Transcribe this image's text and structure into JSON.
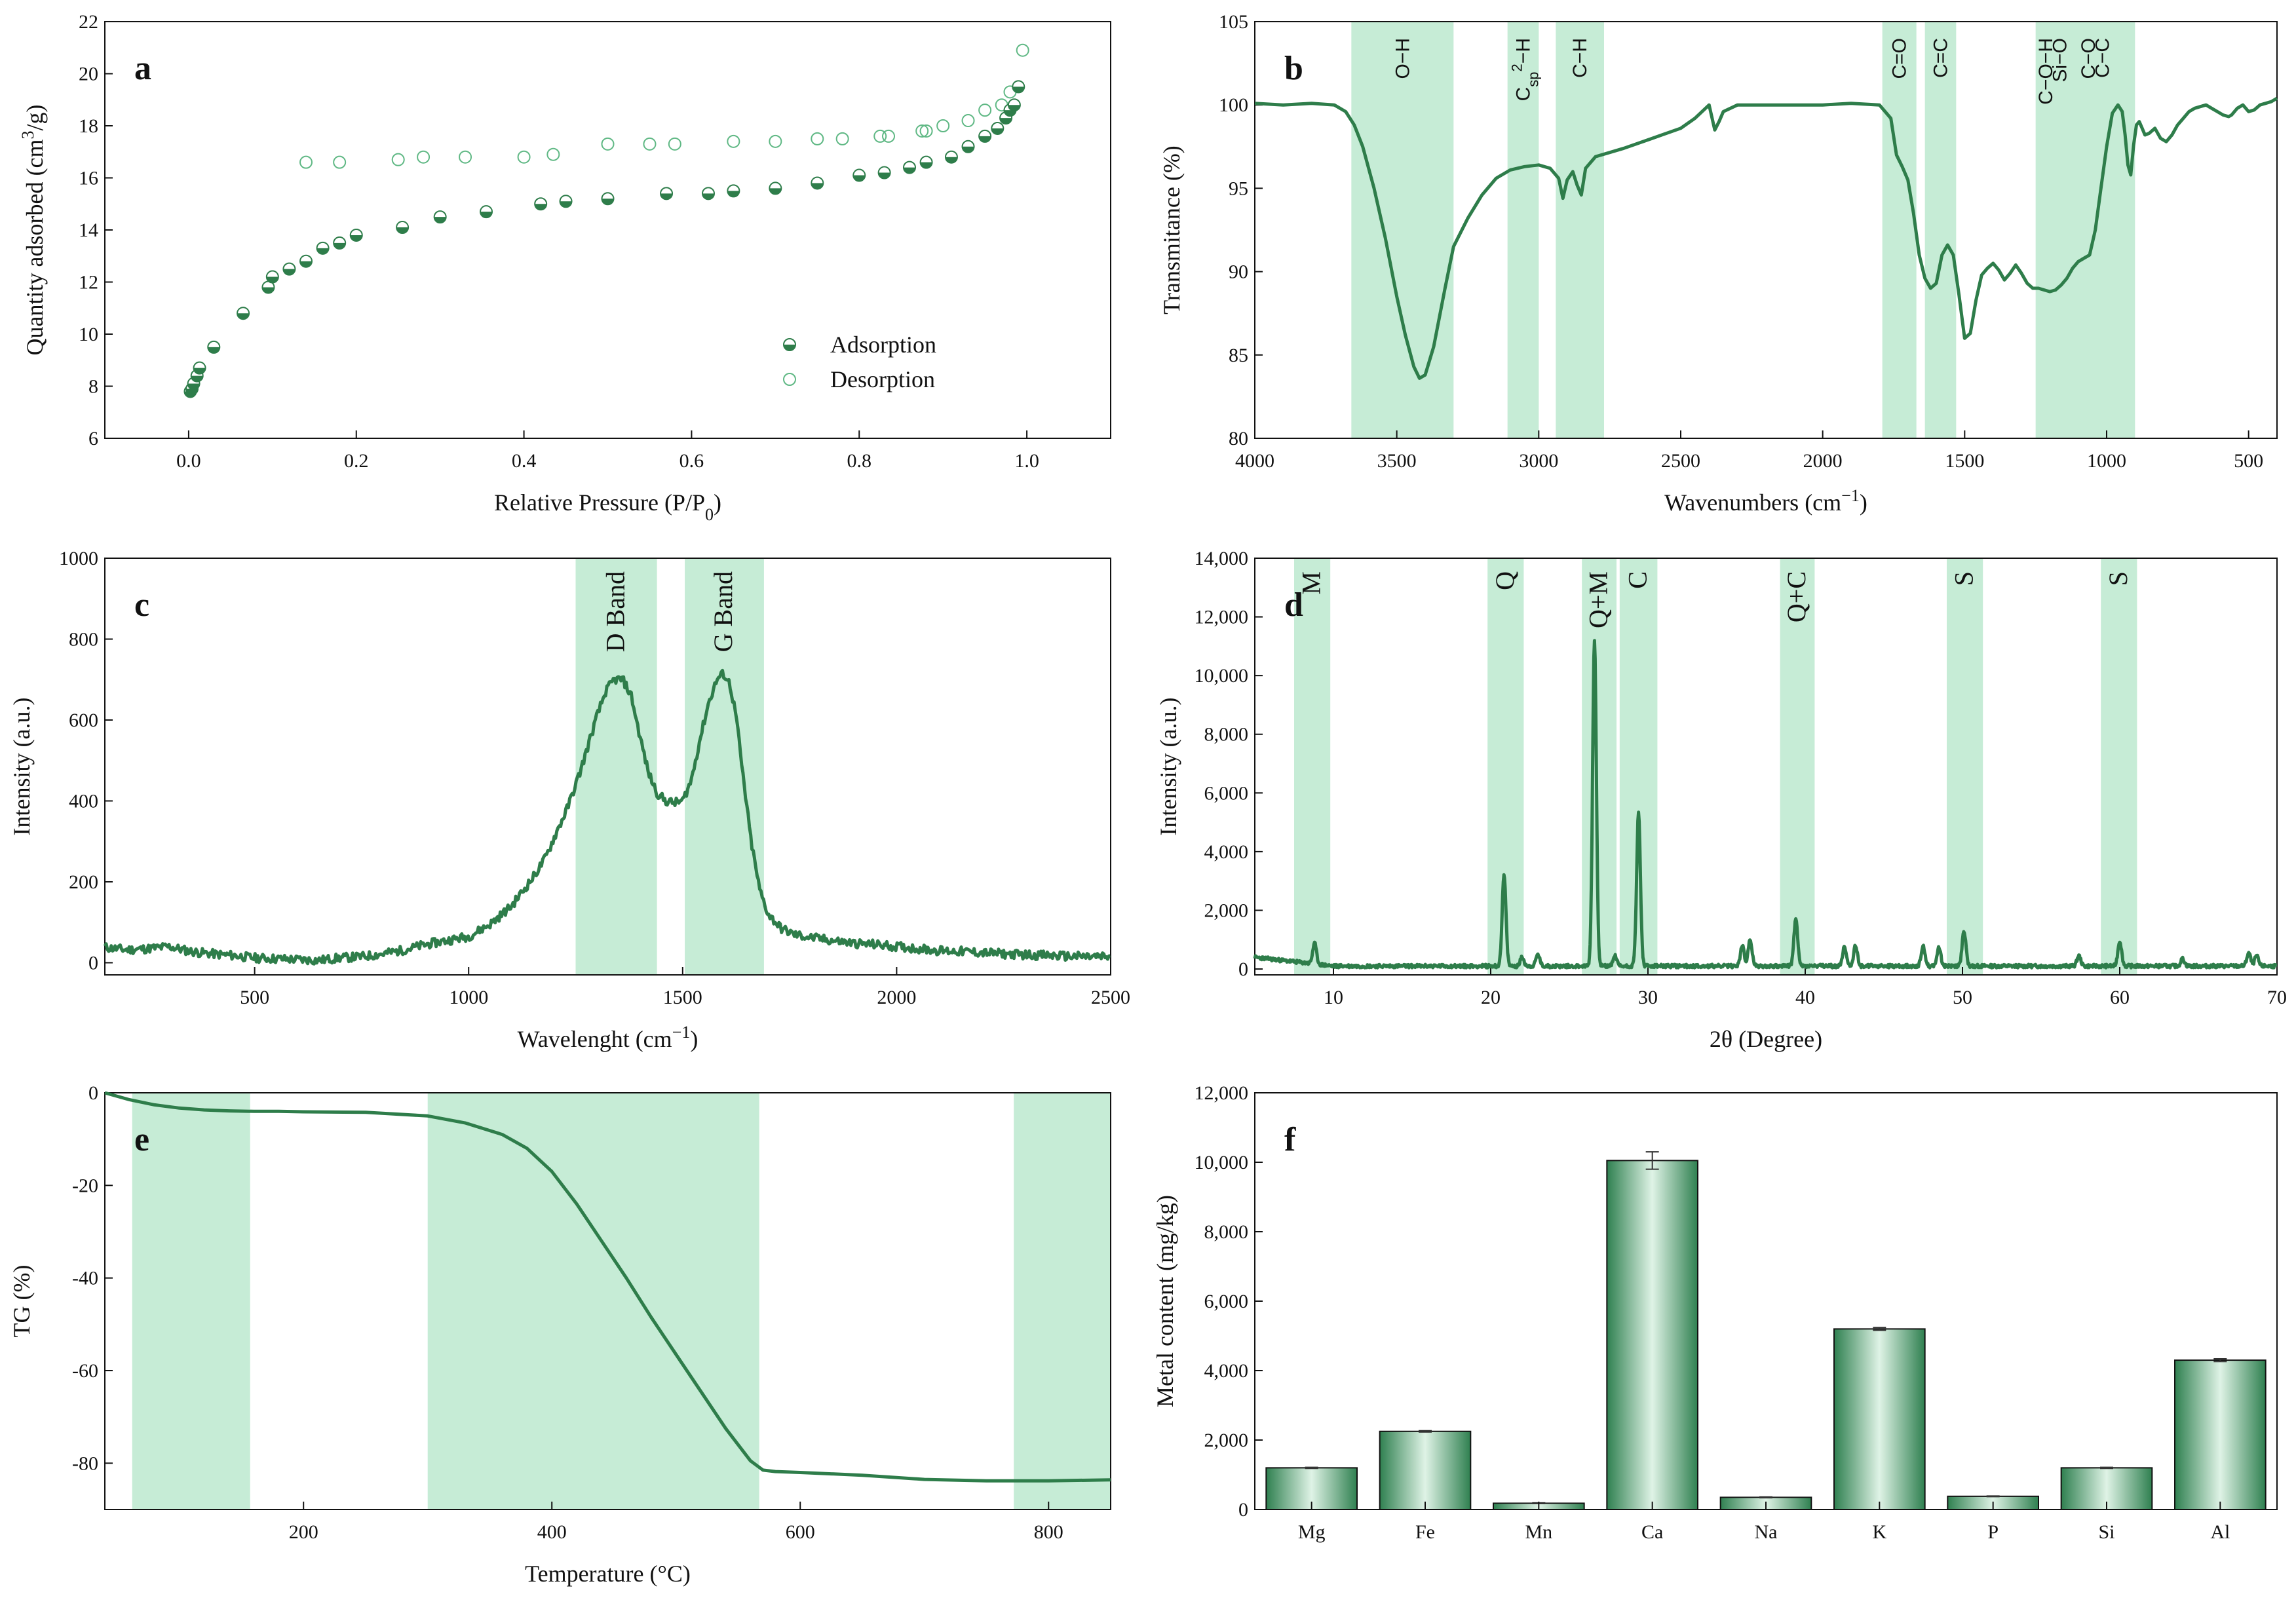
{
  "colors": {
    "line": "#2e7d4a",
    "band": "#c6ecd6",
    "marker_stroke": "#5fb884",
    "bar_dark": "#2f8050",
    "bar_light": "#dff3e6"
  },
  "chart_data": [
    {
      "id": "a",
      "type": "scatter",
      "letter": "a",
      "xlabel": "Relative Pressure (P/P",
      "xlabel_sub": "0",
      "xlabel_tail": ")",
      "ylabel": "Quantity adsorbed (cm",
      "ylabel_sup": "3",
      "ylabel_tail": "/g)",
      "xlim": [
        -0.1,
        1.1
      ],
      "ylim": [
        6,
        22
      ],
      "xticks": [
        "0.0",
        "0.2",
        "0.4",
        "0.6",
        "0.8",
        "1.0"
      ],
      "xtick_values": [
        0,
        0.2,
        0.4,
        0.6,
        0.8,
        1.0
      ],
      "yticks": [
        "6",
        "8",
        "10",
        "12",
        "14",
        "16",
        "18",
        "20",
        "22"
      ],
      "ytick_values": [
        6,
        8,
        10,
        12,
        14,
        16,
        18,
        20,
        22
      ],
      "legend": [
        "Adsorption",
        "Desorption"
      ],
      "series": [
        {
          "name": "Adsorption",
          "x": [
            0.002,
            0.004,
            0.006,
            0.01,
            0.013,
            0.03,
            0.065,
            0.095,
            0.1,
            0.12,
            0.14,
            0.16,
            0.18,
            0.2,
            0.255,
            0.3,
            0.355,
            0.42,
            0.45,
            0.5,
            0.57,
            0.62,
            0.65,
            0.7,
            0.75,
            0.8,
            0.83,
            0.86,
            0.88,
            0.91,
            0.93,
            0.95,
            0.965,
            0.975,
            0.98,
            0.985,
            0.99
          ],
          "y": [
            7.8,
            7.9,
            8.1,
            8.4,
            8.7,
            9.5,
            10.8,
            11.8,
            12.2,
            12.5,
            12.8,
            13.3,
            13.5,
            13.8,
            14.1,
            14.5,
            14.7,
            15.0,
            15.1,
            15.2,
            15.4,
            15.4,
            15.5,
            15.6,
            15.8,
            16.1,
            16.2,
            16.4,
            16.6,
            16.8,
            17.2,
            17.6,
            17.9,
            18.3,
            18.6,
            18.8,
            19.5
          ]
        },
        {
          "name": "Desorption",
          "x": [
            0.14,
            0.18,
            0.25,
            0.28,
            0.33,
            0.4,
            0.435,
            0.5,
            0.55,
            0.58,
            0.65,
            0.7,
            0.75,
            0.78,
            0.825,
            0.835,
            0.875,
            0.88,
            0.9,
            0.93,
            0.95,
            0.97,
            0.98,
            0.995
          ],
          "y": [
            16.6,
            16.6,
            16.7,
            16.8,
            16.8,
            16.8,
            16.9,
            17.3,
            17.3,
            17.3,
            17.4,
            17.4,
            17.5,
            17.5,
            17.6,
            17.6,
            17.8,
            17.8,
            18.0,
            18.2,
            18.6,
            18.8,
            19.3,
            20.9
          ]
        }
      ]
    },
    {
      "id": "b",
      "type": "line",
      "letter": "b",
      "xlabel": "Wavenumbers (cm",
      "xlabel_sup": "−1",
      "xlabel_tail": ")",
      "ylabel": "Transmitance (%)",
      "xlim": [
        4000,
        400
      ],
      "ylim": [
        80,
        105
      ],
      "xticks": [
        "4000",
        "3500",
        "3000",
        "2500",
        "2000",
        "1500",
        "1000",
        "500"
      ],
      "xtick_values": [
        4000,
        3500,
        3000,
        2500,
        2000,
        1500,
        1000,
        500
      ],
      "yticks": [
        "80",
        "85",
        "90",
        "95",
        "100",
        "105"
      ],
      "ytick_values": [
        80,
        85,
        90,
        95,
        100,
        105
      ],
      "bands": [
        [
          3660,
          3300
        ],
        [
          3110,
          3000
        ],
        [
          2940,
          2770
        ],
        [
          1790,
          1670
        ],
        [
          1640,
          1530
        ],
        [
          1250,
          900
        ]
      ],
      "band_labels": [
        {
          "text": "O−H",
          "x": 3480
        },
        {
          "text": "C",
          "sub": "sp",
          "sup": "2",
          "tail": "−H",
          "x": 3055
        },
        {
          "text": "C−H",
          "x": 2855
        },
        {
          "text": "C=O",
          "x": 1730
        },
        {
          "text": "C=C",
          "x": 1585
        },
        {
          "text": "C−O−H",
          "x": 1215
        },
        {
          "text": "Si−O",
          "x": 1165
        },
        {
          "text": "C−O",
          "x": 1065
        },
        {
          "text": "C−C",
          "x": 1015
        }
      ],
      "x": [
        4000,
        3900,
        3800,
        3720,
        3680,
        3650,
        3620,
        3580,
        3540,
        3500,
        3470,
        3440,
        3420,
        3400,
        3370,
        3330,
        3300,
        3250,
        3200,
        3150,
        3100,
        3050,
        3000,
        2960,
        2930,
        2915,
        2900,
        2880,
        2865,
        2850,
        2835,
        2800,
        2700,
        2600,
        2500,
        2450,
        2400,
        2380,
        2365,
        2350,
        2300,
        2200,
        2100,
        2000,
        1900,
        1800,
        1760,
        1740,
        1720,
        1700,
        1680,
        1660,
        1640,
        1620,
        1600,
        1580,
        1560,
        1540,
        1520,
        1500,
        1480,
        1460,
        1440,
        1420,
        1400,
        1380,
        1360,
        1340,
        1320,
        1300,
        1280,
        1260,
        1240,
        1220,
        1200,
        1180,
        1160,
        1140,
        1120,
        1100,
        1080,
        1060,
        1040,
        1020,
        1000,
        980,
        960,
        945,
        935,
        925,
        915,
        905,
        895,
        885,
        875,
        865,
        850,
        830,
        810,
        790,
        770,
        750,
        730,
        710,
        690,
        670,
        650,
        630,
        610,
        590,
        570,
        560,
        540,
        520,
        500,
        480,
        460,
        440,
        420,
        400
      ],
      "y": [
        100.1,
        100.0,
        100.1,
        100.0,
        99.6,
        98.8,
        97.5,
        95.0,
        92.0,
        88.5,
        86.2,
        84.3,
        83.6,
        83.8,
        85.5,
        89.0,
        91.5,
        93.2,
        94.6,
        95.6,
        96.1,
        96.3,
        96.4,
        96.2,
        95.6,
        94.4,
        95.5,
        96.0,
        95.2,
        94.6,
        96.2,
        96.9,
        97.4,
        98.0,
        98.6,
        99.2,
        100.0,
        98.5,
        99.0,
        99.6,
        100.0,
        100.0,
        100.0,
        100.0,
        100.1,
        100.0,
        99.2,
        97.0,
        96.3,
        95.5,
        93.5,
        91.0,
        89.6,
        89.0,
        89.3,
        91.0,
        91.6,
        91.0,
        88.6,
        86.0,
        86.3,
        88.3,
        89.8,
        90.2,
        90.5,
        90.1,
        89.5,
        89.9,
        90.4,
        89.9,
        89.3,
        89.0,
        89.0,
        88.9,
        88.8,
        88.9,
        89.2,
        89.6,
        90.2,
        90.6,
        90.8,
        91.0,
        92.5,
        95.0,
        97.5,
        99.5,
        100.0,
        99.6,
        98.2,
        96.4,
        95.8,
        97.6,
        98.8,
        99.0,
        98.6,
        98.2,
        98.3,
        98.6,
        98.0,
        97.8,
        98.2,
        98.8,
        99.2,
        99.6,
        99.8,
        99.9,
        100.0,
        99.8,
        99.6,
        99.4,
        99.3,
        99.4,
        99.8,
        100.0,
        99.6,
        99.7,
        100.0,
        100.1,
        100.2,
        100.4
      ]
    },
    {
      "id": "c",
      "type": "line",
      "letter": "c",
      "xlabel": "Wavelenght (cm",
      "xlabel_sup": "−1",
      "xlabel_tail": ")",
      "ylabel": "Intensity (a.u.)",
      "xlim": [
        150,
        2500
      ],
      "ylim": [
        -30,
        1000
      ],
      "xticks": [
        "500",
        "1000",
        "1500",
        "2000",
        "2500"
      ],
      "xtick_values": [
        500,
        1000,
        1500,
        2000,
        2500
      ],
      "yticks": [
        "0",
        "200",
        "400",
        "600",
        "800",
        "1000"
      ],
      "ytick_values": [
        0,
        200,
        400,
        600,
        800,
        1000
      ],
      "bands": [
        [
          1250,
          1440
        ],
        [
          1505,
          1690
        ]
      ],
      "band_labels": [
        {
          "text": "D Band",
          "x": 1345
        },
        {
          "text": "G Band",
          "x": 1597
        }
      ],
      "x": [
        150,
        200,
        250,
        300,
        350,
        400,
        450,
        500,
        550,
        600,
        650,
        700,
        750,
        800,
        850,
        900,
        950,
        1000,
        1050,
        1100,
        1150,
        1180,
        1200,
        1230,
        1260,
        1280,
        1300,
        1320,
        1340,
        1360,
        1380,
        1400,
        1420,
        1440,
        1460,
        1480,
        1500,
        1520,
        1540,
        1560,
        1580,
        1595,
        1610,
        1625,
        1640,
        1660,
        1680,
        1700,
        1730,
        1760,
        1800,
        1850,
        1900,
        1950,
        2000,
        2050,
        2100,
        2150,
        2200,
        2250,
        2300,
        2350,
        2400,
        2450,
        2500
      ],
      "y": [
        38,
        32,
        35,
        40,
        28,
        22,
        18,
        12,
        10,
        8,
        6,
        12,
        15,
        22,
        32,
        45,
        55,
        65,
        95,
        140,
        210,
        260,
        310,
        380,
        470,
        540,
        610,
        670,
        700,
        700,
        660,
        560,
        470,
        420,
        400,
        395,
        400,
        450,
        550,
        640,
        700,
        715,
        690,
        610,
        470,
        300,
        180,
        120,
        85,
        70,
        62,
        55,
        48,
        45,
        40,
        35,
        30,
        28,
        25,
        22,
        20,
        18,
        16,
        15,
        14
      ]
    },
    {
      "id": "d",
      "type": "line",
      "letter": "d",
      "xlabel": "2θ (Degree)",
      "ylabel": "Intensity (a.u.)",
      "xlim": [
        5,
        70
      ],
      "ylim": [
        -200,
        14000
      ],
      "xticks": [
        "10",
        "20",
        "30",
        "40",
        "50",
        "60",
        "70"
      ],
      "xtick_values": [
        10,
        20,
        30,
        40,
        50,
        60,
        70
      ],
      "yticks": [
        "0",
        "2,000",
        "4,000",
        "6,000",
        "8,000",
        "10,000",
        "12,000",
        "14,000"
      ],
      "ytick_values": [
        0,
        2000,
        4000,
        6000,
        8000,
        10000,
        12000,
        14000
      ],
      "bands": [
        [
          7.5,
          9.8
        ],
        [
          19.8,
          22.1
        ],
        [
          25.8,
          28.0
        ],
        [
          28.2,
          30.6
        ],
        [
          38.4,
          40.6
        ],
        [
          49.0,
          51.3
        ],
        [
          58.8,
          61.1
        ]
      ],
      "band_labels": [
        {
          "text": "M",
          "x": 8.65
        },
        {
          "text": "Q",
          "x": 20.95
        },
        {
          "text": "Q+M",
          "x": 26.9
        },
        {
          "text": "C",
          "x": 29.4
        },
        {
          "text": "Q+C",
          "x": 39.5
        },
        {
          "text": "S",
          "x": 50.15
        },
        {
          "text": "S",
          "x": 59.95
        }
      ],
      "peaks": [
        [
          8.8,
          700
        ],
        [
          20.85,
          3100
        ],
        [
          22.0,
          300
        ],
        [
          23.0,
          400
        ],
        [
          26.6,
          11100
        ],
        [
          27.9,
          350
        ],
        [
          29.4,
          5200
        ],
        [
          36.0,
          700
        ],
        [
          36.5,
          900
        ],
        [
          39.4,
          1600
        ],
        [
          42.5,
          650
        ],
        [
          43.2,
          700
        ],
        [
          47.5,
          700
        ],
        [
          48.5,
          650
        ],
        [
          50.1,
          1200
        ],
        [
          57.4,
          350
        ],
        [
          60.0,
          850
        ],
        [
          64.0,
          250
        ],
        [
          68.2,
          450
        ],
        [
          68.7,
          350
        ]
      ],
      "baseline": 100
    },
    {
      "id": "e",
      "type": "line",
      "letter": "e",
      "xlabel": "Temperature (°C)",
      "ylabel": "TG (%)",
      "xlim": [
        40,
        850
      ],
      "ylim": [
        -90,
        0
      ],
      "xticks": [
        "200",
        "400",
        "600",
        "800"
      ],
      "xtick_values": [
        200,
        400,
        600,
        800
      ],
      "yticks": [
        "0",
        "-20",
        "-40",
        "-60",
        "-80"
      ],
      "ytick_values": [
        0,
        -20,
        -40,
        -60,
        -80
      ],
      "bands": [
        [
          62,
          157
        ],
        [
          300,
          567
        ],
        [
          772,
          850
        ]
      ],
      "x": [
        40,
        60,
        80,
        100,
        120,
        140,
        160,
        180,
        200,
        250,
        300,
        330,
        360,
        380,
        400,
        420,
        440,
        460,
        480,
        500,
        520,
        540,
        560,
        570,
        580,
        600,
        650,
        700,
        750,
        800,
        850
      ],
      "y": [
        0,
        -1.5,
        -2.6,
        -3.3,
        -3.7,
        -3.9,
        -4.0,
        -4.0,
        -4.1,
        -4.2,
        -5.0,
        -6.5,
        -9.0,
        -12.0,
        -17.0,
        -24.0,
        -32.0,
        -40.0,
        -48.5,
        -56.5,
        -64.5,
        -72.5,
        -79.5,
        -81.5,
        -81.8,
        -82.0,
        -82.6,
        -83.5,
        -83.8,
        -83.8,
        -83.6
      ]
    },
    {
      "id": "f",
      "type": "bar",
      "letter": "f",
      "ylabel": "Metal content (mg/kg)",
      "ylim": [
        0,
        12000
      ],
      "yticks": [
        "0",
        "2,000",
        "4,000",
        "6,000",
        "8,000",
        "10,000",
        "12,000"
      ],
      "ytick_values": [
        0,
        2000,
        4000,
        6000,
        8000,
        10000,
        12000
      ],
      "categories": [
        "Mg",
        "Fe",
        "Mn",
        "Ca",
        "Na",
        "K",
        "P",
        "Si",
        "Al"
      ],
      "values": [
        1200,
        2250,
        180,
        10050,
        350,
        5200,
        380,
        1200,
        4300
      ],
      "errors": [
        15,
        20,
        10,
        250,
        12,
        40,
        10,
        15,
        40
      ]
    }
  ]
}
